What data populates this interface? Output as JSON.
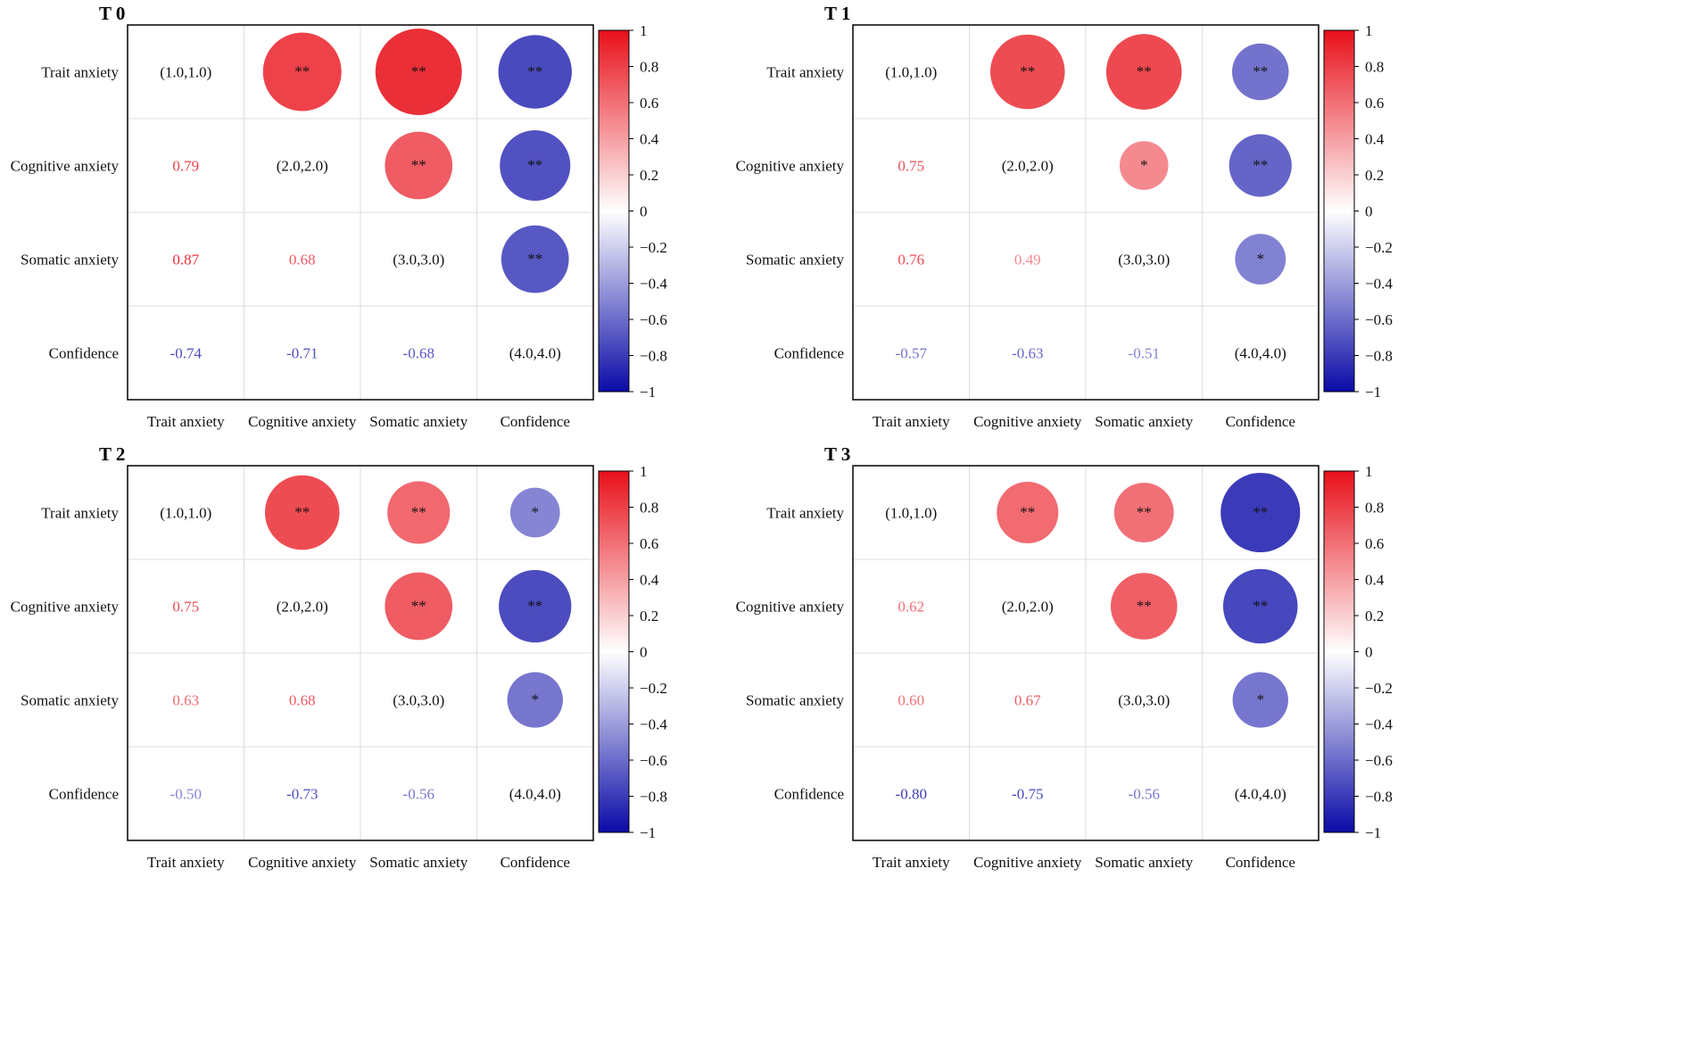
{
  "colorbar": {
    "ticks": [
      "1",
      "0.8",
      "0.6",
      "0.4",
      "0.2",
      "0",
      "−0.2",
      "−0.4",
      "−0.6",
      "−0.8",
      "−1"
    ],
    "colors": {
      "positive": "#e8101a",
      "negative": "#0a0aa8",
      "neutral": "#ffffff"
    }
  },
  "chart_data": [
    {
      "type": "heatmap",
      "title": "T 0",
      "variables": [
        "Trait anxiety",
        "Cognitive anxiety",
        "Somatic anxiety",
        "Confidence"
      ],
      "diagonal_labels": [
        "(1.0,1.0)",
        "(2.0,2.0)",
        "(3.0,3.0)",
        "(4.0,4.0)"
      ],
      "lower_triangle": [
        {
          "row": 1,
          "col": 0,
          "value": 0.79
        },
        {
          "row": 2,
          "col": 0,
          "value": 0.87
        },
        {
          "row": 2,
          "col": 1,
          "value": 0.68
        },
        {
          "row": 3,
          "col": 0,
          "value": -0.74
        },
        {
          "row": 3,
          "col": 1,
          "value": -0.71
        },
        {
          "row": 3,
          "col": 2,
          "value": -0.68
        }
      ],
      "upper_significance": [
        {
          "row": 0,
          "col": 1,
          "mark": "**"
        },
        {
          "row": 0,
          "col": 2,
          "mark": "**"
        },
        {
          "row": 0,
          "col": 3,
          "mark": "**"
        },
        {
          "row": 1,
          "col": 2,
          "mark": "**"
        },
        {
          "row": 1,
          "col": 3,
          "mark": "**"
        },
        {
          "row": 2,
          "col": 3,
          "mark": "**"
        }
      ],
      "colorbar_range": [
        -1,
        1
      ]
    },
    {
      "type": "heatmap",
      "title": "T 1",
      "variables": [
        "Trait anxiety",
        "Cognitive anxiety",
        "Somatic anxiety",
        "Confidence"
      ],
      "diagonal_labels": [
        "(1.0,1.0)",
        "(2.0,2.0)",
        "(3.0,3.0)",
        "(4.0,4.0)"
      ],
      "lower_triangle": [
        {
          "row": 1,
          "col": 0,
          "value": 0.75
        },
        {
          "row": 2,
          "col": 0,
          "value": 0.76
        },
        {
          "row": 2,
          "col": 1,
          "value": 0.49
        },
        {
          "row": 3,
          "col": 0,
          "value": -0.57
        },
        {
          "row": 3,
          "col": 1,
          "value": -0.63
        },
        {
          "row": 3,
          "col": 2,
          "value": -0.51
        }
      ],
      "upper_significance": [
        {
          "row": 0,
          "col": 1,
          "mark": "**"
        },
        {
          "row": 0,
          "col": 2,
          "mark": "**"
        },
        {
          "row": 0,
          "col": 3,
          "mark": "**"
        },
        {
          "row": 1,
          "col": 2,
          "mark": "*"
        },
        {
          "row": 1,
          "col": 3,
          "mark": "**"
        },
        {
          "row": 2,
          "col": 3,
          "mark": "*"
        }
      ],
      "colorbar_range": [
        -1,
        1
      ]
    },
    {
      "type": "heatmap",
      "title": "T 2",
      "variables": [
        "Trait anxiety",
        "Cognitive anxiety",
        "Somatic anxiety",
        "Confidence"
      ],
      "diagonal_labels": [
        "(1.0,1.0)",
        "(2.0,2.0)",
        "(3.0,3.0)",
        "(4.0,4.0)"
      ],
      "lower_triangle": [
        {
          "row": 1,
          "col": 0,
          "value": 0.75
        },
        {
          "row": 2,
          "col": 0,
          "value": 0.63
        },
        {
          "row": 2,
          "col": 1,
          "value": 0.68
        },
        {
          "row": 3,
          "col": 0,
          "value": -0.5
        },
        {
          "row": 3,
          "col": 1,
          "value": -0.73
        },
        {
          "row": 3,
          "col": 2,
          "value": -0.56
        }
      ],
      "upper_significance": [
        {
          "row": 0,
          "col": 1,
          "mark": "**"
        },
        {
          "row": 0,
          "col": 2,
          "mark": "**"
        },
        {
          "row": 0,
          "col": 3,
          "mark": "*"
        },
        {
          "row": 1,
          "col": 2,
          "mark": "**"
        },
        {
          "row": 1,
          "col": 3,
          "mark": "**"
        },
        {
          "row": 2,
          "col": 3,
          "mark": "*"
        }
      ],
      "colorbar_range": [
        -1,
        1
      ]
    },
    {
      "type": "heatmap",
      "title": "T 3",
      "variables": [
        "Trait anxiety",
        "Cognitive anxiety",
        "Somatic anxiety",
        "Confidence"
      ],
      "diagonal_labels": [
        "(1.0,1.0)",
        "(2.0,2.0)",
        "(3.0,3.0)",
        "(4.0,4.0)"
      ],
      "lower_triangle": [
        {
          "row": 1,
          "col": 0,
          "value": 0.62
        },
        {
          "row": 2,
          "col": 0,
          "value": 0.6
        },
        {
          "row": 2,
          "col": 1,
          "value": 0.67
        },
        {
          "row": 3,
          "col": 0,
          "value": -0.8
        },
        {
          "row": 3,
          "col": 1,
          "value": -0.75
        },
        {
          "row": 3,
          "col": 2,
          "value": -0.56
        }
      ],
      "upper_significance": [
        {
          "row": 0,
          "col": 1,
          "mark": "**"
        },
        {
          "row": 0,
          "col": 2,
          "mark": "**"
        },
        {
          "row": 0,
          "col": 3,
          "mark": "**"
        },
        {
          "row": 1,
          "col": 2,
          "mark": "**"
        },
        {
          "row": 1,
          "col": 3,
          "mark": "**"
        },
        {
          "row": 2,
          "col": 3,
          "mark": "*"
        }
      ],
      "colorbar_range": [
        -1,
        1
      ]
    }
  ]
}
